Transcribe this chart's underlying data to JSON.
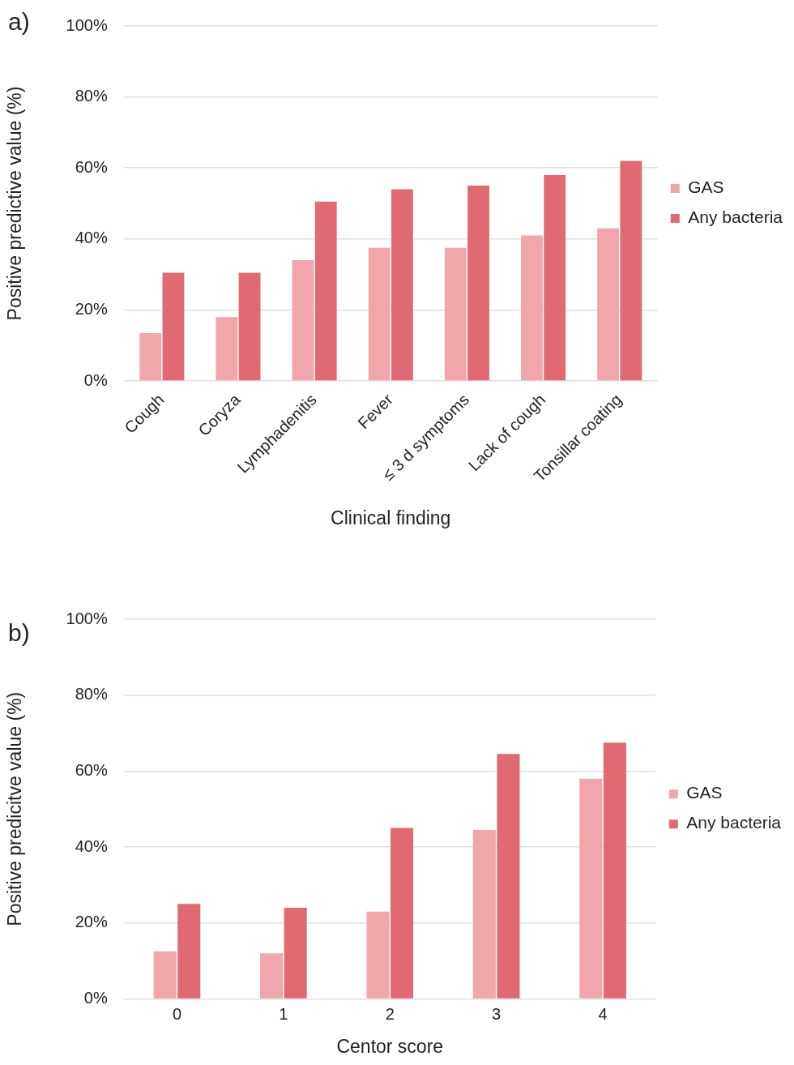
{
  "chart_data": [
    {
      "type": "bar",
      "title": "a)",
      "xlabel": "Clinical finding",
      "ylabel": "Positive predictive value (%)",
      "categories": [
        "Cough",
        "Coryza",
        "Lymphadenitis",
        "Fever",
        "≤ 3 d symptoms",
        "Lack of cough",
        "Tonsillar coating"
      ],
      "series": [
        {
          "name": "GAS",
          "color": "#f0a6aa",
          "values": [
            13.5,
            18,
            34,
            37.5,
            37.5,
            41,
            43
          ]
        },
        {
          "name": "Any bacteria",
          "color": "#e16a72",
          "values": [
            30.5,
            30.5,
            50.5,
            54,
            55,
            58,
            62
          ]
        }
      ],
      "ylim": [
        0,
        100
      ],
      "yticks": [
        {
          "value": 0,
          "label": "0%"
        },
        {
          "value": 20,
          "label": "20%"
        },
        {
          "value": 40,
          "label": "40%"
        },
        {
          "value": 60,
          "label": "60%"
        },
        {
          "value": 80,
          "label": "80%"
        },
        {
          "value": 100,
          "label": "100%"
        }
      ],
      "grid": "y",
      "legend": "right"
    },
    {
      "type": "bar",
      "title": "b)",
      "xlabel": "Centor score",
      "ylabel": "Positive predicitve value (%)",
      "categories": [
        "0",
        "1",
        "2",
        "3",
        "4"
      ],
      "series": [
        {
          "name": "GAS",
          "color": "#f0a6aa",
          "values": [
            12.5,
            12,
            23,
            44.5,
            58
          ]
        },
        {
          "name": "Any bacteria",
          "color": "#e16a72",
          "values": [
            25,
            24,
            45,
            64.5,
            67.5
          ]
        }
      ],
      "ylim": [
        0,
        100
      ],
      "yticks": [
        {
          "value": 0,
          "label": "0%"
        },
        {
          "value": 20,
          "label": "20%"
        },
        {
          "value": 40,
          "label": "40%"
        },
        {
          "value": 60,
          "label": "60%"
        },
        {
          "value": 80,
          "label": "80%"
        },
        {
          "value": 100,
          "label": "100%"
        }
      ],
      "grid": "y",
      "legend": "right"
    }
  ]
}
